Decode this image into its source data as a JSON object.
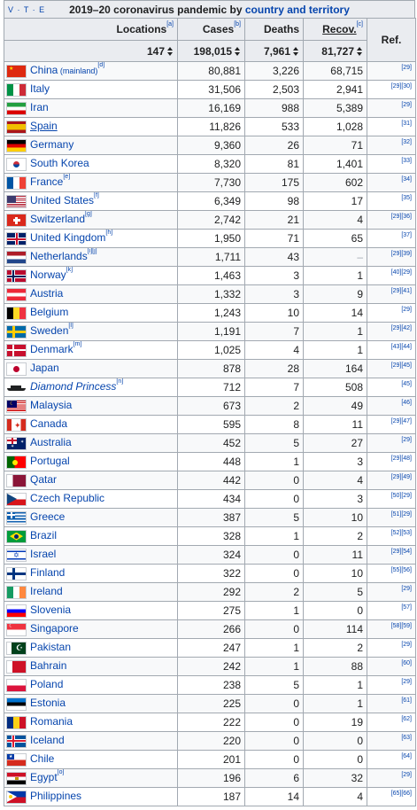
{
  "title": {
    "vte": "V · T · E",
    "prefix": "2019–20 coronavirus pandemic by ",
    "link": "country and territory"
  },
  "headers": {
    "locations": "Locations",
    "locations_note": "[a]",
    "cases": "Cases",
    "cases_note": "[b]",
    "deaths": "Deaths",
    "recov": "Recov.",
    "recov_note": "[c]",
    "ref": "Ref."
  },
  "totals": {
    "locations": "147",
    "cases": "198,015",
    "deaths": "7,961",
    "recov": "81,727"
  },
  "rows": [
    {
      "name": "China",
      "small": " (mainland)",
      "note": "[d]",
      "cases": "80,881",
      "deaths": "3,226",
      "recov": "68,715",
      "ref": "[29]",
      "flag": "cn"
    },
    {
      "name": "Italy",
      "small": "",
      "note": "",
      "cases": "31,506",
      "deaths": "2,503",
      "recov": "2,941",
      "ref": "[29][30]",
      "flag": "it"
    },
    {
      "name": "Iran",
      "small": "",
      "note": "",
      "cases": "16,169",
      "deaths": "988",
      "recov": "5,389",
      "ref": "[29]",
      "flag": "ir"
    },
    {
      "name": "Spain",
      "small": "",
      "note": "",
      "cases": "11,826",
      "deaths": "533",
      "recov": "1,028",
      "ref": "[31]",
      "flag": "es"
    },
    {
      "name": "Germany",
      "small": "",
      "note": "",
      "cases": "9,360",
      "deaths": "26",
      "recov": "71",
      "ref": "[32]",
      "flag": "de"
    },
    {
      "name": "South Korea",
      "small": "",
      "note": "",
      "cases": "8,320",
      "deaths": "81",
      "recov": "1,401",
      "ref": "[33]",
      "flag": "kr"
    },
    {
      "name": "France",
      "small": "",
      "note": "[e]",
      "cases": "7,730",
      "deaths": "175",
      "recov": "602",
      "ref": "[34]",
      "flag": "fr"
    },
    {
      "name": "United States",
      "small": "",
      "note": "[f]",
      "cases": "6,349",
      "deaths": "98",
      "recov": "17",
      "ref": "[35]",
      "flag": "us"
    },
    {
      "name": "Switzerland",
      "small": "",
      "note": "[g]",
      "cases": "2,742",
      "deaths": "21",
      "recov": "4",
      "ref": "[29][36]",
      "flag": "ch"
    },
    {
      "name": "United Kingdom",
      "small": "",
      "note": "[h]",
      "cases": "1,950",
      "deaths": "71",
      "recov": "65",
      "ref": "[37]",
      "flag": "gb"
    },
    {
      "name": "Netherlands",
      "small": "",
      "note": "[i][j]",
      "cases": "1,711",
      "deaths": "43",
      "recov": "–",
      "ref": "[29][39]",
      "flag": "nl"
    },
    {
      "name": "Norway",
      "small": "",
      "note": "[k]",
      "cases": "1,463",
      "deaths": "3",
      "recov": "1",
      "ref": "[40][29]",
      "flag": "no"
    },
    {
      "name": "Austria",
      "small": "",
      "note": "",
      "cases": "1,332",
      "deaths": "3",
      "recov": "9",
      "ref": "[29][41]",
      "flag": "at"
    },
    {
      "name": "Belgium",
      "small": "",
      "note": "",
      "cases": "1,243",
      "deaths": "10",
      "recov": "14",
      "ref": "[29]",
      "flag": "be"
    },
    {
      "name": "Sweden",
      "small": "",
      "note": "[l]",
      "cases": "1,191",
      "deaths": "7",
      "recov": "1",
      "ref": "[29][42]",
      "flag": "se"
    },
    {
      "name": "Denmark",
      "small": "",
      "note": "[m]",
      "cases": "1,025",
      "deaths": "4",
      "recov": "1",
      "ref": "[43][44]",
      "flag": "dk"
    },
    {
      "name": "Japan",
      "small": "",
      "note": "",
      "cases": "878",
      "deaths": "28",
      "recov": "164",
      "ref": "[29][45]",
      "flag": "jp"
    },
    {
      "name": "Diamond Princess",
      "small": "",
      "note": "[n]",
      "cases": "712",
      "deaths": "7",
      "recov": "508",
      "ref": "[45]",
      "flag": "ship"
    },
    {
      "name": "Malaysia",
      "small": "",
      "note": "",
      "cases": "673",
      "deaths": "2",
      "recov": "49",
      "ref": "[46]",
      "flag": "my"
    },
    {
      "name": "Canada",
      "small": "",
      "note": "",
      "cases": "595",
      "deaths": "8",
      "recov": "11",
      "ref": "[29][47]",
      "flag": "ca"
    },
    {
      "name": "Australia",
      "small": "",
      "note": "",
      "cases": "452",
      "deaths": "5",
      "recov": "27",
      "ref": "[29]",
      "flag": "au"
    },
    {
      "name": "Portugal",
      "small": "",
      "note": "",
      "cases": "448",
      "deaths": "1",
      "recov": "3",
      "ref": "[29][48]",
      "flag": "pt"
    },
    {
      "name": "Qatar",
      "small": "",
      "note": "",
      "cases": "442",
      "deaths": "0",
      "recov": "4",
      "ref": "[29][49]",
      "flag": "qa"
    },
    {
      "name": "Czech Republic",
      "small": "",
      "note": "",
      "cases": "434",
      "deaths": "0",
      "recov": "3",
      "ref": "[50][29]",
      "flag": "cz"
    },
    {
      "name": "Greece",
      "small": "",
      "note": "",
      "cases": "387",
      "deaths": "5",
      "recov": "10",
      "ref": "[51][29]",
      "flag": "gr"
    },
    {
      "name": "Brazil",
      "small": "",
      "note": "",
      "cases": "328",
      "deaths": "1",
      "recov": "2",
      "ref": "[52][53]",
      "flag": "br"
    },
    {
      "name": "Israel",
      "small": "",
      "note": "",
      "cases": "324",
      "deaths": "0",
      "recov": "11",
      "ref": "[29][54]",
      "flag": "il"
    },
    {
      "name": "Finland",
      "small": "",
      "note": "",
      "cases": "322",
      "deaths": "0",
      "recov": "10",
      "ref": "[55][56]",
      "flag": "fi"
    },
    {
      "name": "Ireland",
      "small": "",
      "note": "",
      "cases": "292",
      "deaths": "2",
      "recov": "5",
      "ref": "[29]",
      "flag": "ie"
    },
    {
      "name": "Slovenia",
      "small": "",
      "note": "",
      "cases": "275",
      "deaths": "1",
      "recov": "0",
      "ref": "[57]",
      "flag": "si"
    },
    {
      "name": "Singapore",
      "small": "",
      "note": "",
      "cases": "266",
      "deaths": "0",
      "recov": "114",
      "ref": "[58][59]",
      "flag": "sg"
    },
    {
      "name": "Pakistan",
      "small": "",
      "note": "",
      "cases": "247",
      "deaths": "1",
      "recov": "2",
      "ref": "[29]",
      "flag": "pk"
    },
    {
      "name": "Bahrain",
      "small": "",
      "note": "",
      "cases": "242",
      "deaths": "1",
      "recov": "88",
      "ref": "[60]",
      "flag": "bh"
    },
    {
      "name": "Poland",
      "small": "",
      "note": "",
      "cases": "238",
      "deaths": "5",
      "recov": "1",
      "ref": "[29]",
      "flag": "pl"
    },
    {
      "name": "Estonia",
      "small": "",
      "note": "",
      "cases": "225",
      "deaths": "0",
      "recov": "1",
      "ref": "[61]",
      "flag": "ee"
    },
    {
      "name": "Romania",
      "small": "",
      "note": "",
      "cases": "222",
      "deaths": "0",
      "recov": "19",
      "ref": "[62]",
      "flag": "ro"
    },
    {
      "name": "Iceland",
      "small": "",
      "note": "",
      "cases": "220",
      "deaths": "0",
      "recov": "0",
      "ref": "[63]",
      "flag": "is"
    },
    {
      "name": "Chile",
      "small": "",
      "note": "",
      "cases": "201",
      "deaths": "0",
      "recov": "0",
      "ref": "[64]",
      "flag": "cl"
    },
    {
      "name": "Egypt",
      "small": "",
      "note": "[o]",
      "cases": "196",
      "deaths": "6",
      "recov": "32",
      "ref": "[29]",
      "flag": "eg"
    },
    {
      "name": "Philippines",
      "small": "",
      "note": "",
      "cases": "187",
      "deaths": "14",
      "recov": "4",
      "ref": "[65][66]",
      "flag": "ph"
    }
  ]
}
